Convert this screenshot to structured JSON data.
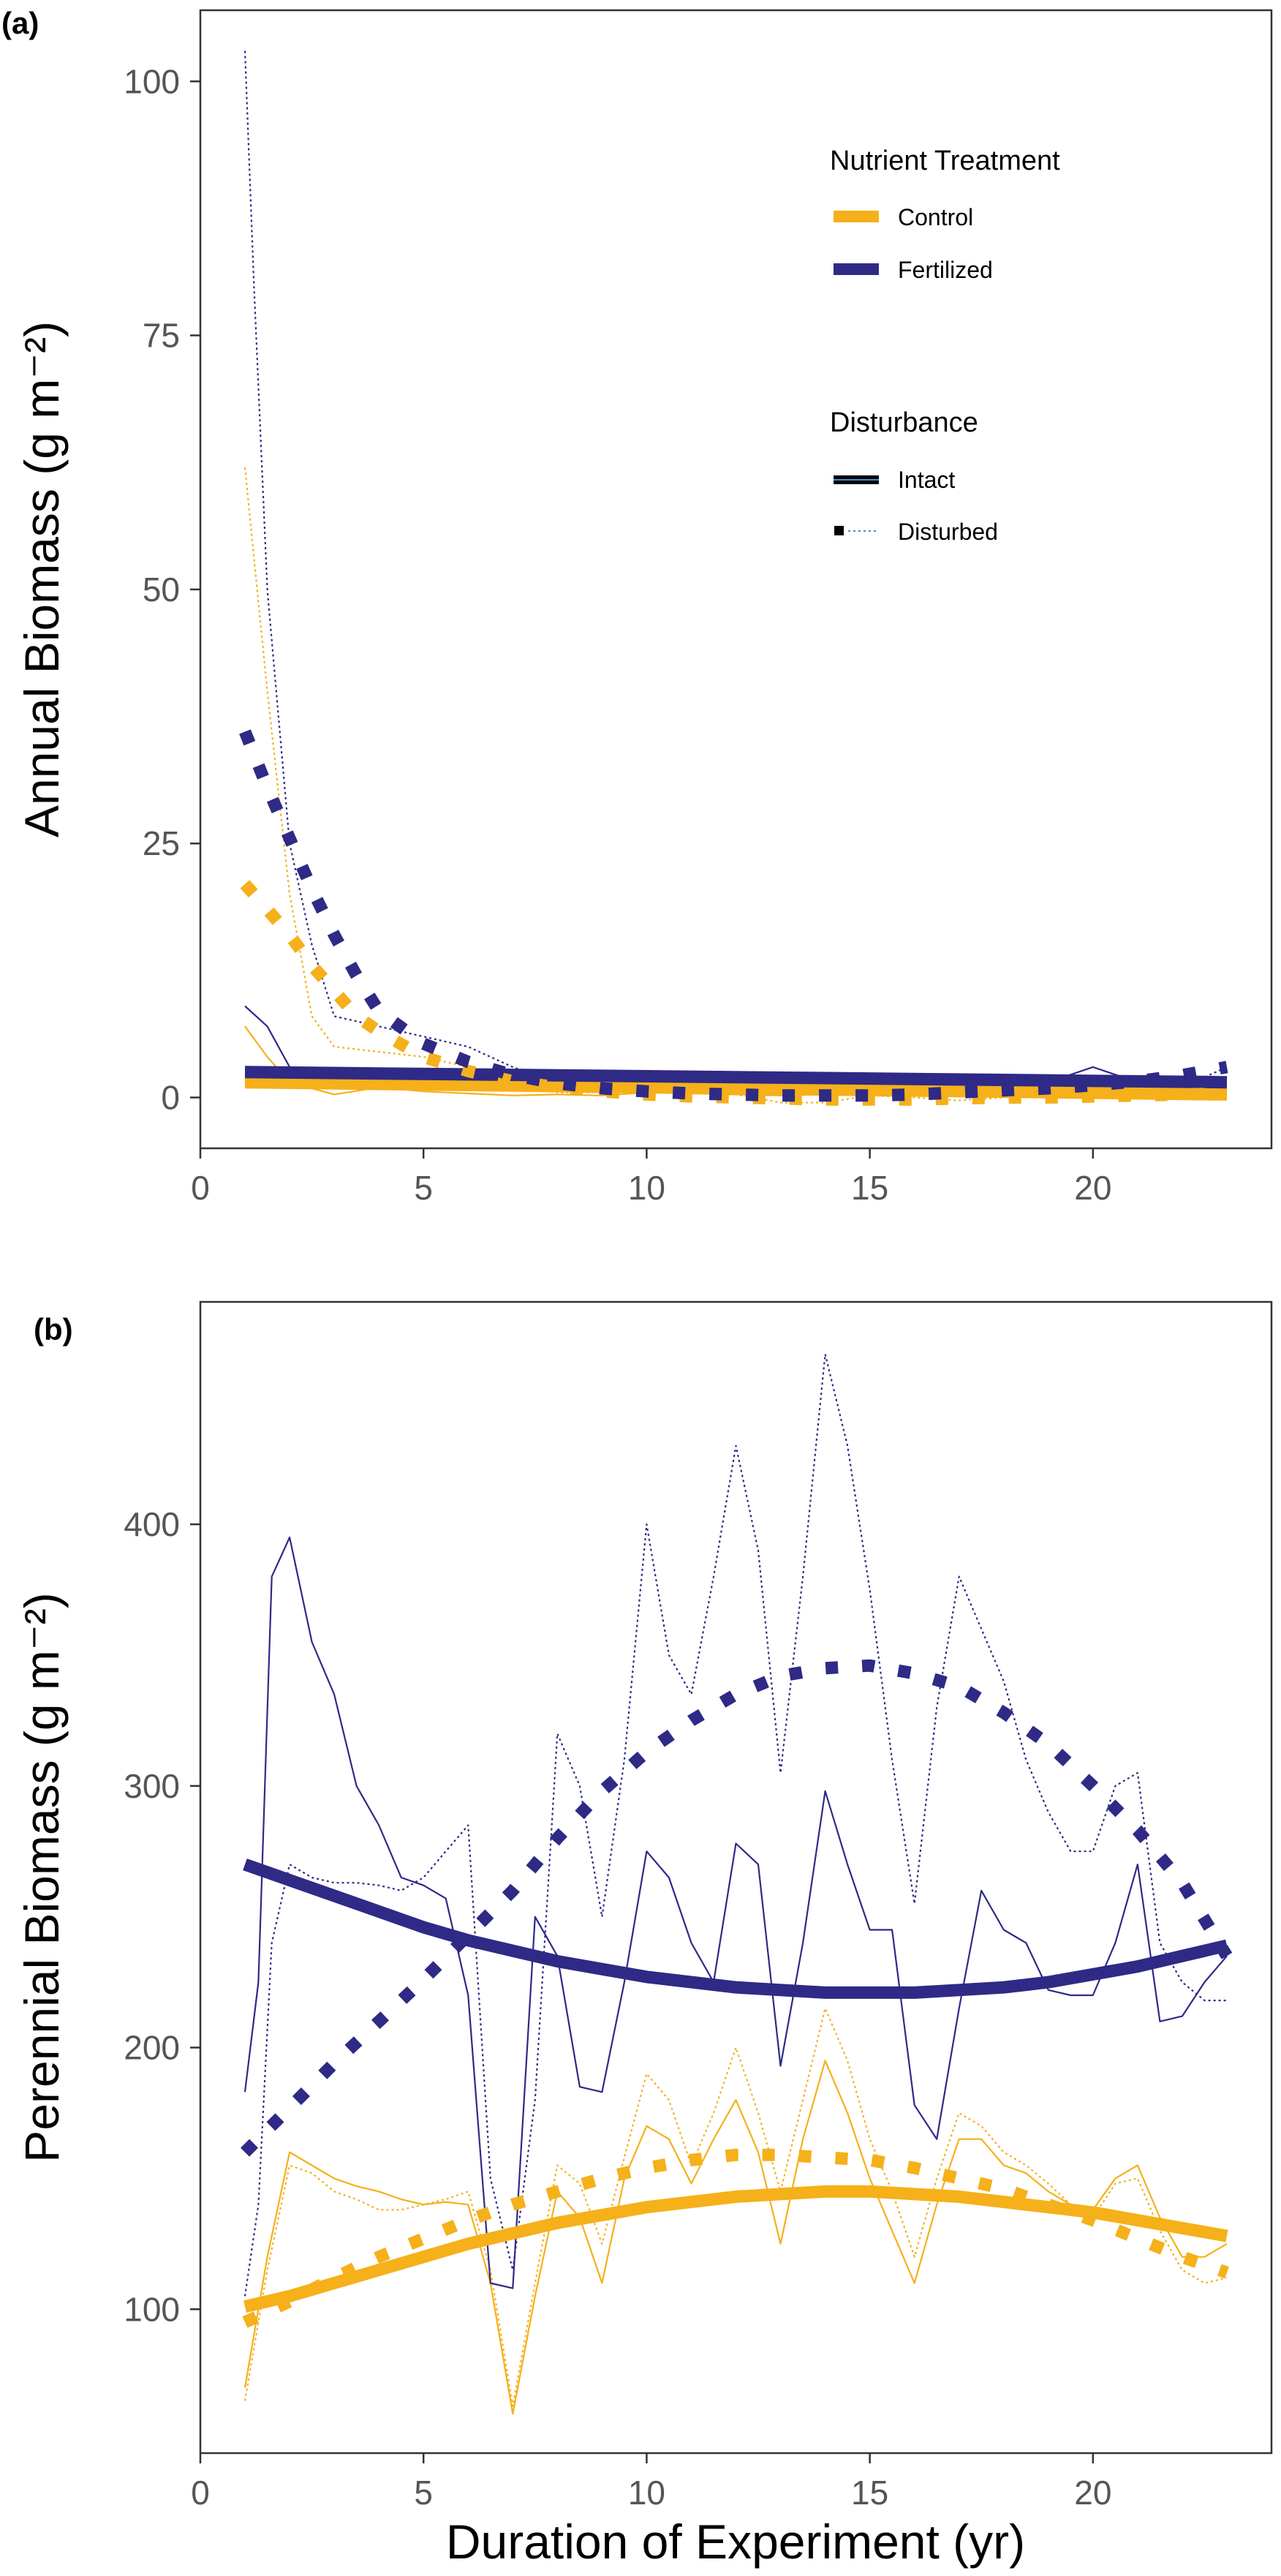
{
  "colors": {
    "control": "#F5B01A",
    "fertilized": "#2E2A86",
    "frame": "#333333",
    "tick_text": "#555555"
  },
  "legend": {
    "nutrient_title": "Nutrient Treatment",
    "nutrient_items": [
      "Control",
      "Fertilized"
    ],
    "disturbance_title": "Disturbance",
    "disturbance_items": [
      "Intact",
      "Disturbed"
    ]
  },
  "xlabel": "Duration of Experiment (yr)",
  "chart_data": [
    {
      "panel": "(a)",
      "type": "line",
      "ylabel": "Annual Biomass (g m⁻²)",
      "xlim": [
        0,
        24
      ],
      "ylim": [
        -5,
        107
      ],
      "xticks": [
        0,
        5,
        10,
        15,
        20
      ],
      "yticks": [
        0,
        25,
        50,
        75,
        100
      ],
      "series": [
        {
          "name": "Control",
          "role": "observed",
          "treatment": "control",
          "disturbance": "intact",
          "x": [
            1,
            1.5,
            2,
            3,
            4,
            5,
            6,
            7,
            8,
            9,
            10,
            11,
            12,
            13,
            14,
            15,
            16,
            17,
            18,
            19,
            20,
            21,
            22,
            23
          ],
          "values": [
            7,
            4,
            1.5,
            0.3,
            1,
            0.6,
            0.4,
            0.2,
            0.3,
            0.2,
            0.5,
            0.4,
            0.3,
            0.2,
            0.3,
            0.2,
            0.3,
            0.2,
            0.3,
            0.2,
            0.5,
            0.4,
            0.3,
            1
          ]
        },
        {
          "name": "Control",
          "role": "observed",
          "treatment": "control",
          "disturbance": "disturbed",
          "x": [
            1,
            1.5,
            2,
            2.5,
            3,
            4,
            5,
            6,
            7,
            8,
            9,
            10,
            11,
            12,
            13,
            14,
            15,
            16,
            17,
            18,
            19,
            20,
            21,
            22,
            23
          ],
          "values": [
            62,
            40,
            20,
            8,
            5,
            4.5,
            4,
            3,
            1,
            0.5,
            0.5,
            0.8,
            0.5,
            0.3,
            -0.5,
            -0.5,
            0.2,
            0,
            -0.3,
            0,
            0.2,
            0.3,
            0.2,
            0.5,
            1
          ]
        },
        {
          "name": "Fertilized",
          "role": "observed",
          "treatment": "fertilized",
          "disturbance": "intact",
          "x": [
            1,
            1.5,
            2,
            3,
            4,
            5,
            6,
            7,
            8,
            9,
            10,
            11,
            12,
            13,
            14,
            15,
            16,
            17,
            18,
            19,
            20,
            21,
            22,
            23
          ],
          "values": [
            9,
            7,
            3,
            1,
            1.5,
            1.5,
            1.2,
            1,
            0.8,
            0.8,
            1,
            2,
            1.5,
            1,
            1,
            1,
            2,
            1.5,
            1,
            1.5,
            3,
            1.5,
            1,
            2
          ]
        },
        {
          "name": "Fertilized",
          "role": "observed",
          "treatment": "fertilized",
          "disturbance": "disturbed",
          "x": [
            1,
            1.2,
            1.5,
            2,
            2.5,
            3,
            4,
            5,
            6,
            7,
            8,
            9,
            10,
            11,
            12,
            13,
            14,
            15,
            16,
            17,
            18,
            19,
            20,
            21,
            22,
            23
          ],
          "values": [
            103,
            80,
            50,
            25,
            15,
            8,
            7,
            6,
            5,
            3,
            1.5,
            1,
            1,
            0.5,
            0.5,
            0.5,
            0.3,
            0.2,
            1,
            0.3,
            0.5,
            0.5,
            0.5,
            1,
            1,
            3
          ]
        },
        {
          "name": "Control",
          "role": "fit",
          "treatment": "control",
          "disturbance": "intact",
          "x": [
            1,
            23
          ],
          "values": [
            1.5,
            0.3
          ]
        },
        {
          "name": "Fertilized",
          "role": "fit",
          "treatment": "fertilized",
          "disturbance": "intact",
          "x": [
            1,
            23
          ],
          "values": [
            2.5,
            1.5
          ]
        },
        {
          "name": "Control",
          "role": "fit",
          "treatment": "control",
          "disturbance": "disturbed",
          "x": [
            1,
            1.5,
            2,
            2.5,
            3,
            3.5,
            4,
            5,
            6,
            7,
            8,
            9,
            10,
            11,
            12,
            13,
            14,
            15,
            16,
            17,
            18,
            19,
            20,
            21,
            22,
            23
          ],
          "values": [
            21,
            18.5,
            16,
            13,
            10.5,
            8,
            6.5,
            4,
            2.6,
            1.6,
            1,
            0.6,
            0.3,
            0.1,
            0,
            -0.1,
            -0.2,
            -0.2,
            -0.2,
            -0.1,
            0,
            0,
            0.1,
            0.2,
            0.3,
            0.4
          ]
        },
        {
          "name": "Fertilized",
          "role": "fit",
          "treatment": "fertilized",
          "disturbance": "disturbed",
          "x": [
            1,
            1.5,
            2,
            2.5,
            3,
            3.5,
            4,
            5,
            6,
            7,
            8,
            9,
            10,
            11,
            12,
            13,
            14,
            15,
            16,
            17,
            18,
            19,
            20,
            21,
            22,
            23
          ],
          "values": [
            36,
            30.5,
            25.5,
            20.5,
            16,
            12,
            8.5,
            5.3,
            3.5,
            2.2,
            1.4,
            0.9,
            0.6,
            0.4,
            0.3,
            0.2,
            0.2,
            0.2,
            0.3,
            0.5,
            0.7,
            0.9,
            1.2,
            1.6,
            2.2,
            3
          ]
        }
      ]
    },
    {
      "panel": "(b)",
      "type": "line",
      "ylabel": "Perennial Biomass (g m⁻²)",
      "xlim": [
        0,
        24
      ],
      "ylim": [
        45,
        485
      ],
      "xticks": [
        0,
        5,
        10,
        15,
        20
      ],
      "yticks": [
        100,
        200,
        300,
        400
      ],
      "series": [
        {
          "name": "Control",
          "role": "observed",
          "treatment": "control",
          "disturbance": "intact",
          "x": [
            1,
            1.5,
            2,
            2.5,
            3,
            3.5,
            4,
            4.5,
            5,
            5.5,
            6,
            6.5,
            7,
            7.5,
            8,
            8.5,
            9,
            9.5,
            10,
            10.5,
            11,
            11.5,
            12,
            12.5,
            13,
            13.5,
            14,
            14.5,
            15,
            15.5,
            16,
            16.5,
            17,
            17.5,
            18,
            18.5,
            19,
            19.5,
            20,
            20.5,
            21,
            21.5,
            22,
            22.5,
            23
          ],
          "values": [
            70,
            120,
            160,
            155,
            150,
            147,
            145,
            142,
            140,
            141,
            140,
            110,
            60,
            105,
            145,
            135,
            110,
            150,
            170,
            165,
            148,
            165,
            180,
            160,
            125,
            165,
            195,
            175,
            150,
            130,
            110,
            140,
            165,
            165,
            155,
            152,
            145,
            140,
            138,
            150,
            155,
            135,
            120,
            120,
            125
          ]
        },
        {
          "name": "Control",
          "role": "observed",
          "treatment": "control",
          "disturbance": "disturbed",
          "x": [
            1,
            1.5,
            2,
            2.5,
            3,
            3.5,
            4,
            4.5,
            5,
            5.5,
            6,
            6.5,
            7,
            7.5,
            8,
            8.5,
            9,
            9.5,
            10,
            10.5,
            11,
            11.5,
            12,
            12.5,
            13,
            13.5,
            14,
            14.5,
            15,
            15.5,
            16,
            16.5,
            17,
            17.5,
            18,
            18.5,
            19,
            19.5,
            20,
            20.5,
            21,
            21.5,
            22,
            22.5,
            23
          ],
          "values": [
            65,
            115,
            155,
            152,
            145,
            142,
            138,
            138,
            140,
            142,
            145,
            115,
            63,
            110,
            155,
            148,
            125,
            158,
            190,
            180,
            155,
            175,
            200,
            175,
            145,
            180,
            215,
            195,
            165,
            145,
            120,
            150,
            175,
            170,
            160,
            155,
            148,
            140,
            135,
            148,
            150,
            130,
            115,
            110,
            112
          ]
        },
        {
          "name": "Fertilized",
          "role": "observed",
          "treatment": "fertilized",
          "disturbance": "intact",
          "x": [
            1,
            1.3,
            1.6,
            2,
            2.5,
            3,
            3.5,
            4,
            4.5,
            5,
            5.5,
            6,
            6.5,
            7,
            7.5,
            8,
            8.5,
            9,
            9.5,
            10,
            10.5,
            11,
            11.5,
            12,
            12.5,
            13,
            13.5,
            14,
            14.5,
            15,
            15.5,
            16,
            16.5,
            17,
            17.5,
            18,
            18.5,
            19,
            19.5,
            20,
            20.5,
            21,
            21.5,
            22,
            22.5,
            23
          ],
          "values": [
            183,
            225,
            380,
            395,
            355,
            335,
            300,
            285,
            265,
            262,
            257,
            220,
            110,
            108,
            250,
            235,
            185,
            183,
            225,
            275,
            265,
            240,
            225,
            278,
            270,
            193,
            240,
            298,
            270,
            245,
            245,
            178,
            165,
            215,
            260,
            245,
            240,
            222,
            220,
            220,
            240,
            270,
            210,
            212,
            225,
            235
          ]
        },
        {
          "name": "Fertilized",
          "role": "observed",
          "treatment": "fertilized",
          "disturbance": "disturbed",
          "x": [
            1,
            1.3,
            1.6,
            2,
            2.5,
            3,
            3.5,
            4,
            4.5,
            5,
            5.5,
            6,
            6.5,
            7,
            7.5,
            8,
            8.5,
            9,
            9.5,
            10,
            10.5,
            11,
            11.5,
            12,
            12.5,
            13,
            13.5,
            14,
            14.5,
            15,
            15.5,
            16,
            16.5,
            17,
            17.5,
            18,
            18.5,
            19,
            19.5,
            20,
            20.5,
            21,
            21.5,
            22,
            22.5,
            23
          ],
          "values": [
            105,
            140,
            240,
            270,
            265,
            263,
            263,
            262,
            260,
            265,
            275,
            285,
            150,
            115,
            180,
            320,
            300,
            250,
            310,
            400,
            350,
            335,
            380,
            430,
            390,
            305,
            380,
            465,
            430,
            375,
            310,
            255,
            330,
            380,
            360,
            340,
            310,
            290,
            275,
            275,
            300,
            305,
            240,
            225,
            218,
            218
          ]
        },
        {
          "name": "Control",
          "role": "fit",
          "treatment": "control",
          "disturbance": "intact",
          "x": [
            1,
            2,
            3,
            4,
            5,
            6,
            7,
            8,
            9,
            10,
            11,
            12,
            13,
            14,
            15,
            16,
            17,
            18,
            19,
            20,
            21,
            22,
            23
          ],
          "values": [
            101,
            105,
            110,
            115,
            120,
            125,
            129,
            133,
            136,
            139,
            141,
            143,
            144,
            145,
            145,
            144,
            143,
            141,
            139,
            137,
            134,
            131,
            128
          ]
        },
        {
          "name": "Fertilized",
          "role": "fit",
          "treatment": "fertilized",
          "disturbance": "intact",
          "x": [
            1,
            2,
            3,
            4,
            5,
            6,
            7,
            8,
            9,
            10,
            11,
            12,
            13,
            14,
            15,
            16,
            17,
            18,
            19,
            20,
            21,
            22,
            23
          ],
          "values": [
            270,
            264,
            258,
            252,
            246,
            241,
            237,
            233,
            230,
            227,
            225,
            223,
            222,
            221,
            221,
            221,
            222,
            223,
            225,
            228,
            231,
            235,
            239
          ]
        },
        {
          "name": "Control",
          "role": "fit",
          "treatment": "control",
          "disturbance": "disturbed",
          "x": [
            1,
            2,
            3,
            4,
            5,
            6,
            7,
            8,
            9,
            10,
            11,
            12,
            13,
            14,
            15,
            16,
            17,
            18,
            19,
            20,
            21,
            22,
            23
          ],
          "values": [
            95,
            103,
            112,
            120,
            127,
            134,
            140,
            145,
            150,
            154,
            157,
            159,
            159,
            158,
            157,
            154,
            150,
            146,
            140,
            134,
            127,
            120,
            114
          ]
        },
        {
          "name": "Fertilized",
          "role": "fit",
          "treatment": "fertilized",
          "disturbance": "disturbed",
          "x": [
            1,
            2,
            3,
            4,
            5,
            6,
            7,
            8,
            9,
            10,
            11,
            12,
            13,
            14,
            15,
            16,
            17,
            18,
            19,
            20,
            21,
            22,
            23
          ],
          "values": [
            160,
            177,
            194,
            210,
            226,
            243,
            260,
            280,
            298,
            313,
            325,
            335,
            342,
            345,
            346,
            343,
            338,
            328,
            316,
            300,
            283,
            263,
            235
          ]
        }
      ]
    }
  ]
}
